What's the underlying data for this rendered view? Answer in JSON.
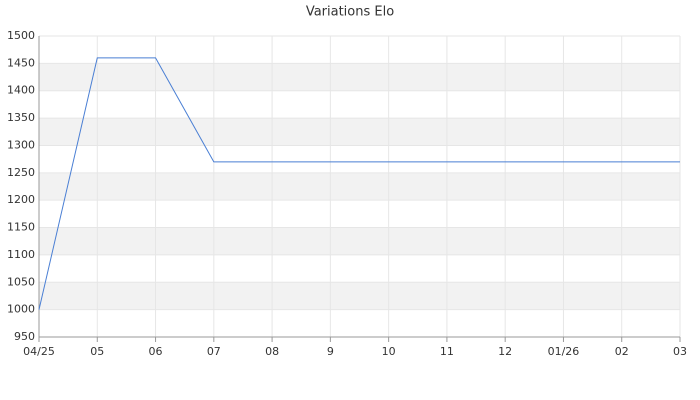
{
  "chart_data": {
    "type": "line",
    "title": "Variations Elo",
    "categories": [
      "04/25",
      "05",
      "06",
      "07",
      "08",
      "9",
      "10",
      "11",
      "12",
      "01/26",
      "02",
      "03"
    ],
    "series": [
      {
        "name": "Elo",
        "color": "#4a7fd4",
        "values": [
          1000,
          1460,
          1460,
          1270,
          1270,
          1270,
          1270,
          1270,
          1270,
          1270,
          1270,
          1270
        ]
      }
    ],
    "ylim": [
      950,
      1500
    ],
    "yticks": [
      950,
      1000,
      1050,
      1100,
      1150,
      1200,
      1250,
      1300,
      1350,
      1400,
      1450,
      1500
    ],
    "grid": true,
    "alternate_bands": true,
    "band_color": "#f2f2f2"
  }
}
